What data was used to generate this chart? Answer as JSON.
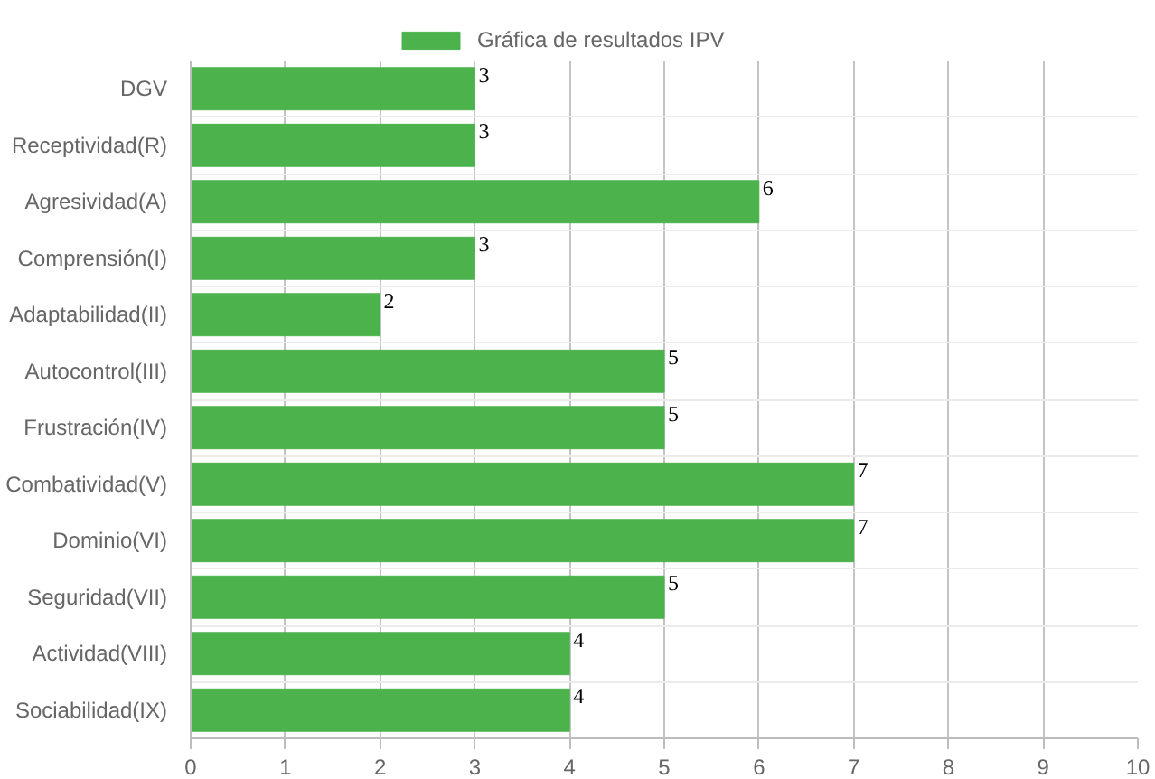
{
  "chart_data": {
    "type": "bar",
    "orientation": "horizontal",
    "categories": [
      "DGV",
      "Receptividad(R)",
      "Agresividad(A)",
      "Comprensión(I)",
      "Adaptabilidad(II)",
      "Autocontrol(III)",
      "Frustración(IV)",
      "Combatividad(V)",
      "Dominio(VI)",
      "Seguridad(VII)",
      "Actividad(VIII)",
      "Sociabilidad(IX)"
    ],
    "series": [
      {
        "name": "Gráfica de resultados IPV",
        "color": "#4cb34c",
        "values": [
          3,
          3,
          6,
          3,
          2,
          5,
          5,
          7,
          7,
          5,
          4,
          4
        ]
      }
    ],
    "xlim": [
      0,
      10
    ],
    "xticks": [
      0,
      1,
      2,
      3,
      4,
      5,
      6,
      7,
      8,
      9,
      10
    ],
    "grid": true,
    "legend": "top",
    "data_labels": true
  }
}
